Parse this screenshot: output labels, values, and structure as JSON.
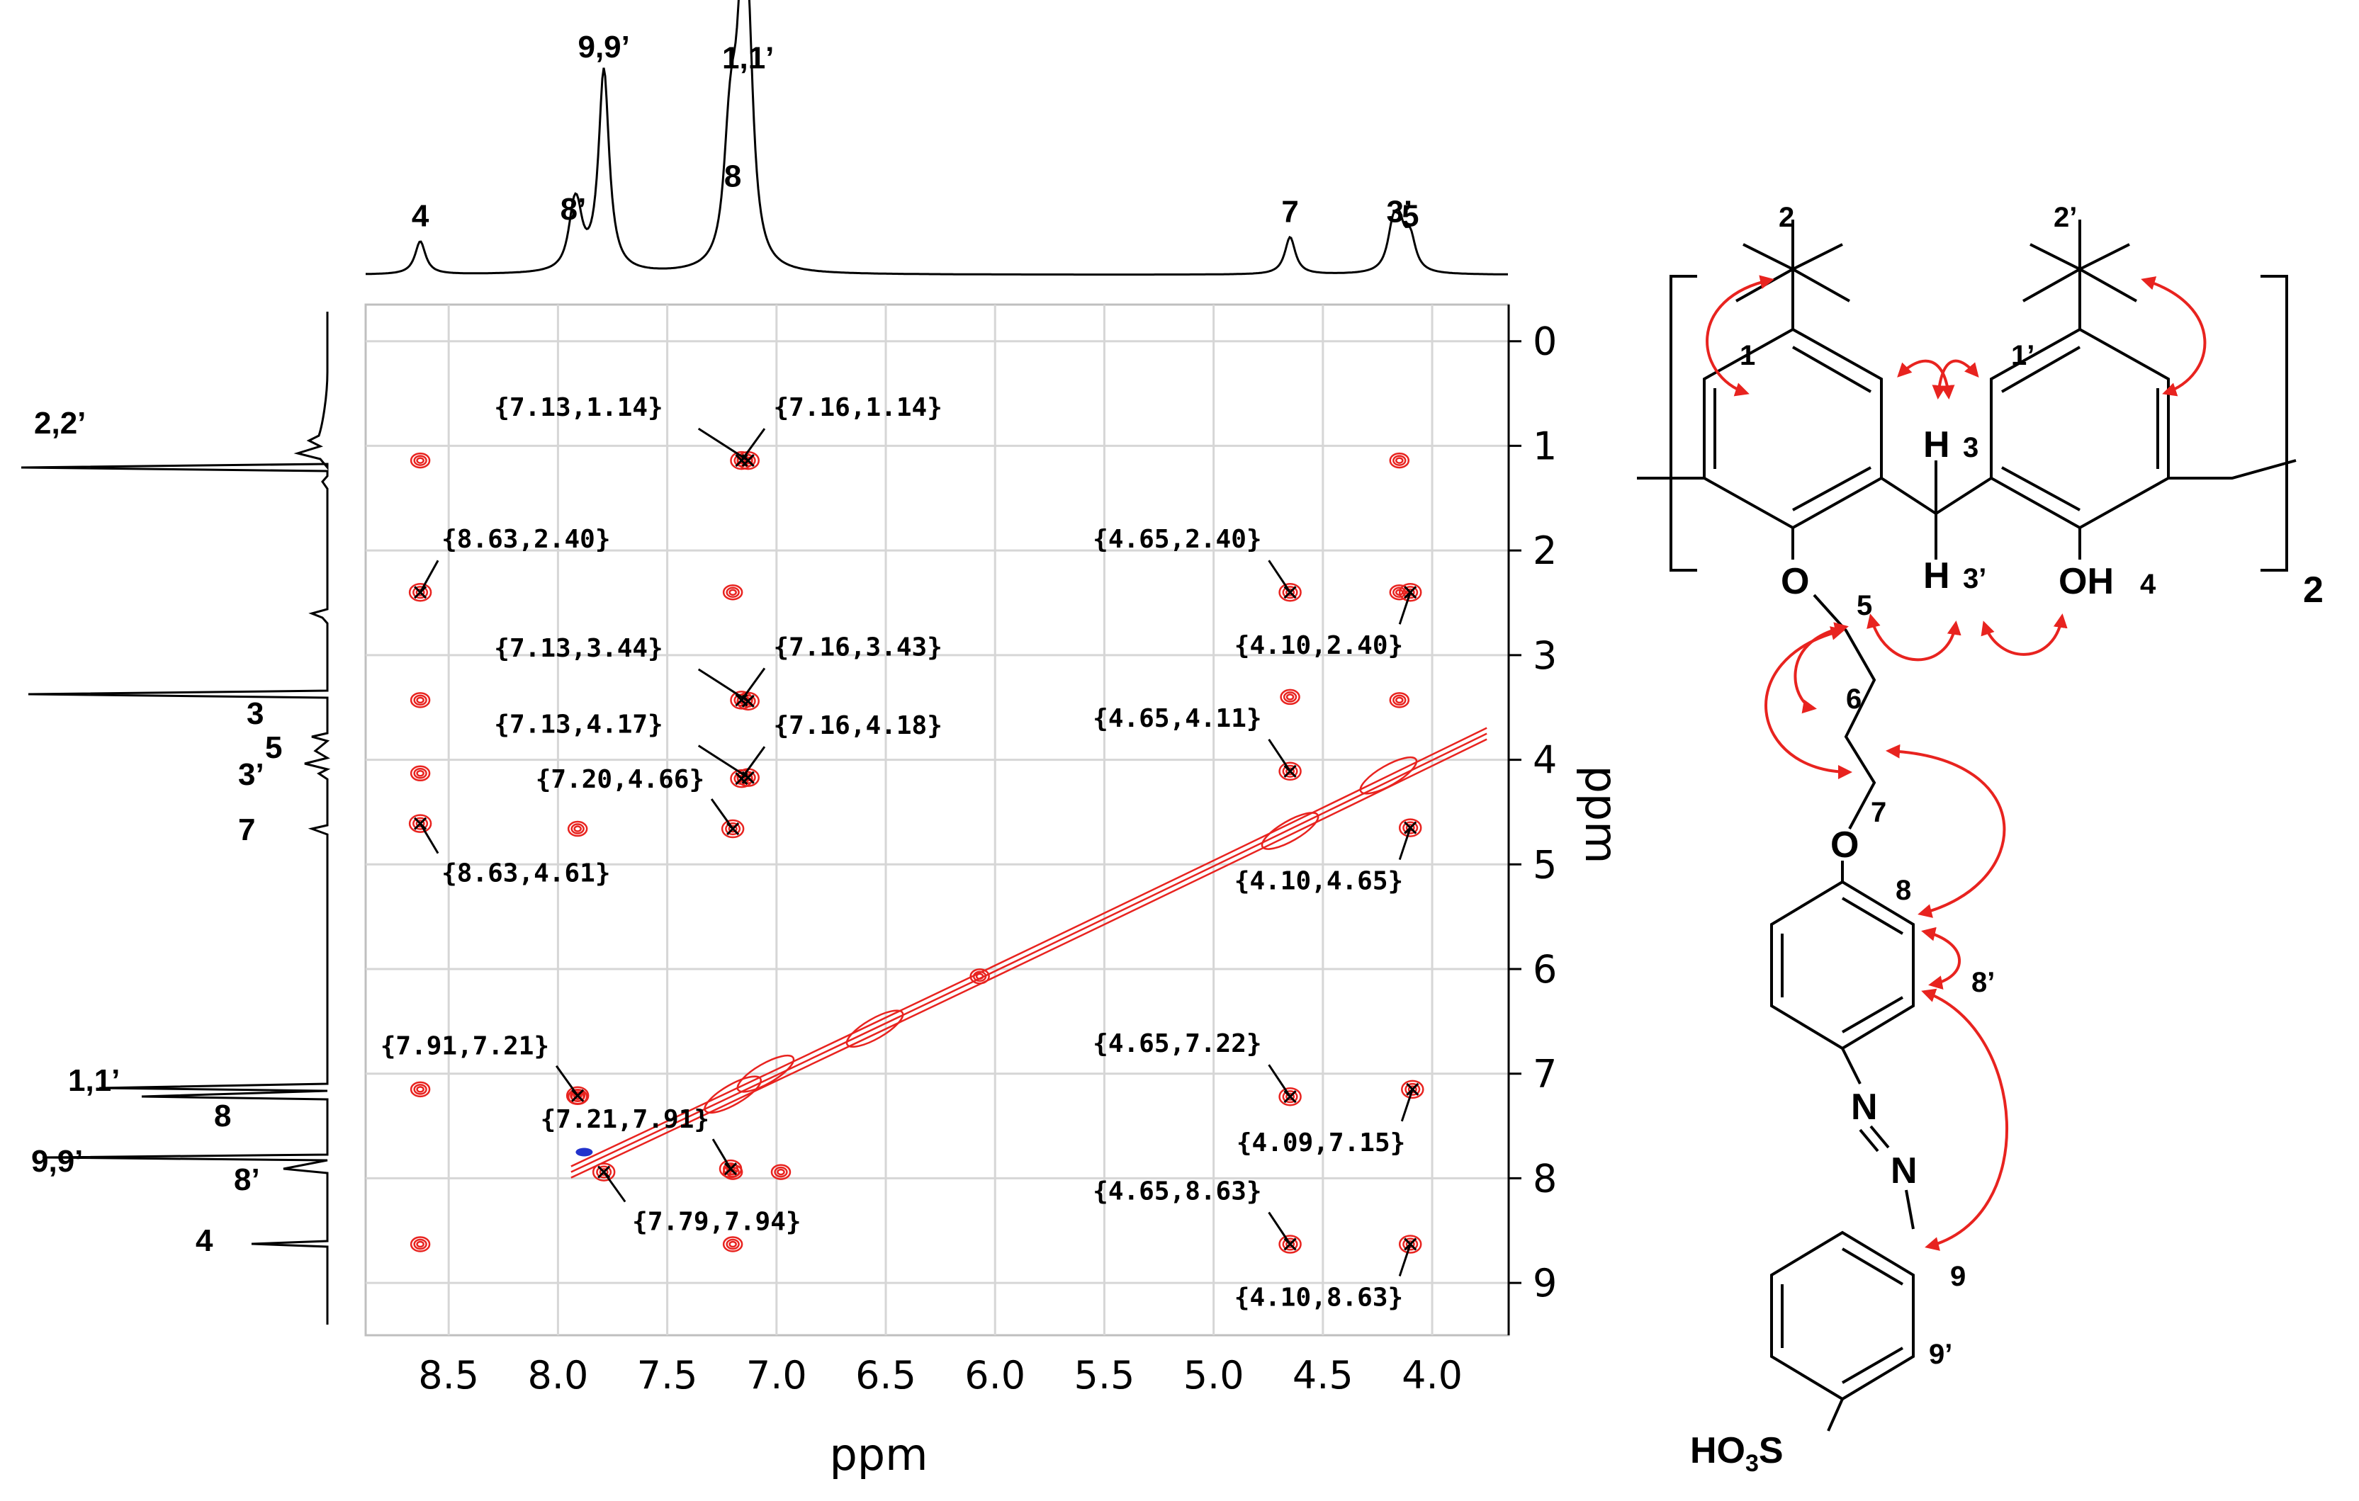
{
  "chart_data": {
    "type": "heatmap",
    "subtype": "2D NOESY NMR contour plot with 1D projections",
    "xlabel": "ppm",
    "ylabel": "ppm",
    "xlim": [
      8.88,
      3.65
    ],
    "ylim": [
      9.5,
      -0.35
    ],
    "x_ticks": [
      "8.5",
      "8.0",
      "7.5",
      "7.0",
      "6.5",
      "6.0",
      "5.5",
      "5.0",
      "4.5",
      "4.0"
    ],
    "y_ticks": [
      "0",
      "1",
      "2",
      "3",
      "4",
      "5",
      "6",
      "7",
      "8",
      "9"
    ],
    "grid": true,
    "contour_color": "#e8231f",
    "negative_contour_color": "#2233cc",
    "top_spectrum": {
      "peaks": [
        {
          "shift": 8.63,
          "height": 0.15,
          "label": "4"
        },
        {
          "shift": 7.93,
          "height": 0.18,
          "label": "8’"
        },
        {
          "shift": 7.91,
          "height": 0.18,
          "label": ""
        },
        {
          "shift": 7.79,
          "height": 0.92,
          "label": "9,9’"
        },
        {
          "shift": 7.22,
          "height": 0.33,
          "label": ""
        },
        {
          "shift": 7.2,
          "height": 0.33,
          "label": "8"
        },
        {
          "shift": 7.16,
          "height": 0.85,
          "label": ""
        },
        {
          "shift": 7.13,
          "height": 0.87,
          "label": "1,1’"
        },
        {
          "shift": 4.65,
          "height": 0.17,
          "label": "7"
        },
        {
          "shift": 4.18,
          "height": 0.17,
          "label": ""
        },
        {
          "shift": 4.15,
          "height": 0.17,
          "label": "3’"
        },
        {
          "shift": 4.1,
          "height": 0.15,
          "label": "5"
        }
      ]
    },
    "side_spectrum": {
      "labels": [
        "2,2’",
        "3",
        "5",
        "3’",
        "7",
        "1,1’",
        "8",
        "9,9’",
        "8’",
        "4"
      ]
    },
    "cross_peaks": [
      {
        "x": 7.13,
        "y": 1.14,
        "label": "{7.13,1.14}"
      },
      {
        "x": 7.16,
        "y": 1.14,
        "label": "{7.16,1.14}"
      },
      {
        "x": 8.63,
        "y": 2.4,
        "label": "{8.63,2.40}"
      },
      {
        "x": 4.65,
        "y": 2.4,
        "label": "{4.65,2.40}"
      },
      {
        "x": 4.1,
        "y": 2.4,
        "label": "{4.10,2.40}"
      },
      {
        "x": 7.13,
        "y": 3.44,
        "label": "{7.13,3.44}"
      },
      {
        "x": 7.16,
        "y": 3.43,
        "label": "{7.16,3.43}"
      },
      {
        "x": 7.13,
        "y": 4.17,
        "label": "{7.13,4.17}"
      },
      {
        "x": 7.16,
        "y": 4.18,
        "label": "{7.16,4.18}"
      },
      {
        "x": 4.65,
        "y": 4.11,
        "label": "{4.65,4.11}"
      },
      {
        "x": 7.2,
        "y": 4.66,
        "label": "{7.20,4.66}"
      },
      {
        "x": 8.63,
        "y": 4.61,
        "label": "{8.63,4.61}"
      },
      {
        "x": 4.1,
        "y": 4.65,
        "label": "{4.10,4.65}"
      },
      {
        "x": 7.91,
        "y": 7.21,
        "label": "{7.91,7.21}"
      },
      {
        "x": 4.65,
        "y": 7.22,
        "label": "{4.65,7.22}"
      },
      {
        "x": 7.21,
        "y": 7.91,
        "label": "{7.21,7.91}"
      },
      {
        "x": 4.09,
        "y": 7.15,
        "label": "{4.09,7.15}"
      },
      {
        "x": 7.79,
        "y": 7.94,
        "label": "{7.79,7.94}"
      },
      {
        "x": 4.65,
        "y": 8.63,
        "label": "{4.65,8.63}"
      },
      {
        "x": 4.1,
        "y": 8.63,
        "label": "{4.10,8.63}"
      }
    ],
    "extra_contours": [
      {
        "x": 8.63,
        "y": 1.14
      },
      {
        "x": 4.15,
        "y": 1.14
      },
      {
        "x": 7.2,
        "y": 2.4
      },
      {
        "x": 4.15,
        "y": 2.4
      },
      {
        "x": 8.63,
        "y": 3.43
      },
      {
        "x": 4.65,
        "y": 3.4
      },
      {
        "x": 4.15,
        "y": 3.43
      },
      {
        "x": 8.63,
        "y": 4.13
      },
      {
        "x": 7.91,
        "y": 4.66
      },
      {
        "x": 6.07,
        "y": 6.07
      },
      {
        "x": 8.63,
        "y": 7.15
      },
      {
        "x": 7.91,
        "y": 7.22
      },
      {
        "x": 7.2,
        "y": 7.94
      },
      {
        "x": 6.98,
        "y": 7.94
      },
      {
        "x": 8.63,
        "y": 8.63
      },
      {
        "x": 7.2,
        "y": 8.63
      }
    ],
    "diagonal": {
      "from": 7.94,
      "to": 3.75
    }
  },
  "structure": {
    "atom_labels": {
      "h_top": "H",
      "h_bottom": "H",
      "oxygen_upper": "O",
      "oxygen_lower": "O",
      "hydroxyl": "OH",
      "nitrogen_1": "N",
      "nitrogen_2": "N",
      "sulfonate_main": "HO",
      "sulfonate_sub": "3",
      "sulfonate_end": "S",
      "repeat_count": "2"
    },
    "position_labels": [
      "1",
      "1’",
      "2",
      "2’",
      "3",
      "3’",
      "4",
      "5",
      "6",
      "7",
      "8",
      "8’",
      "9",
      "9’"
    ]
  }
}
